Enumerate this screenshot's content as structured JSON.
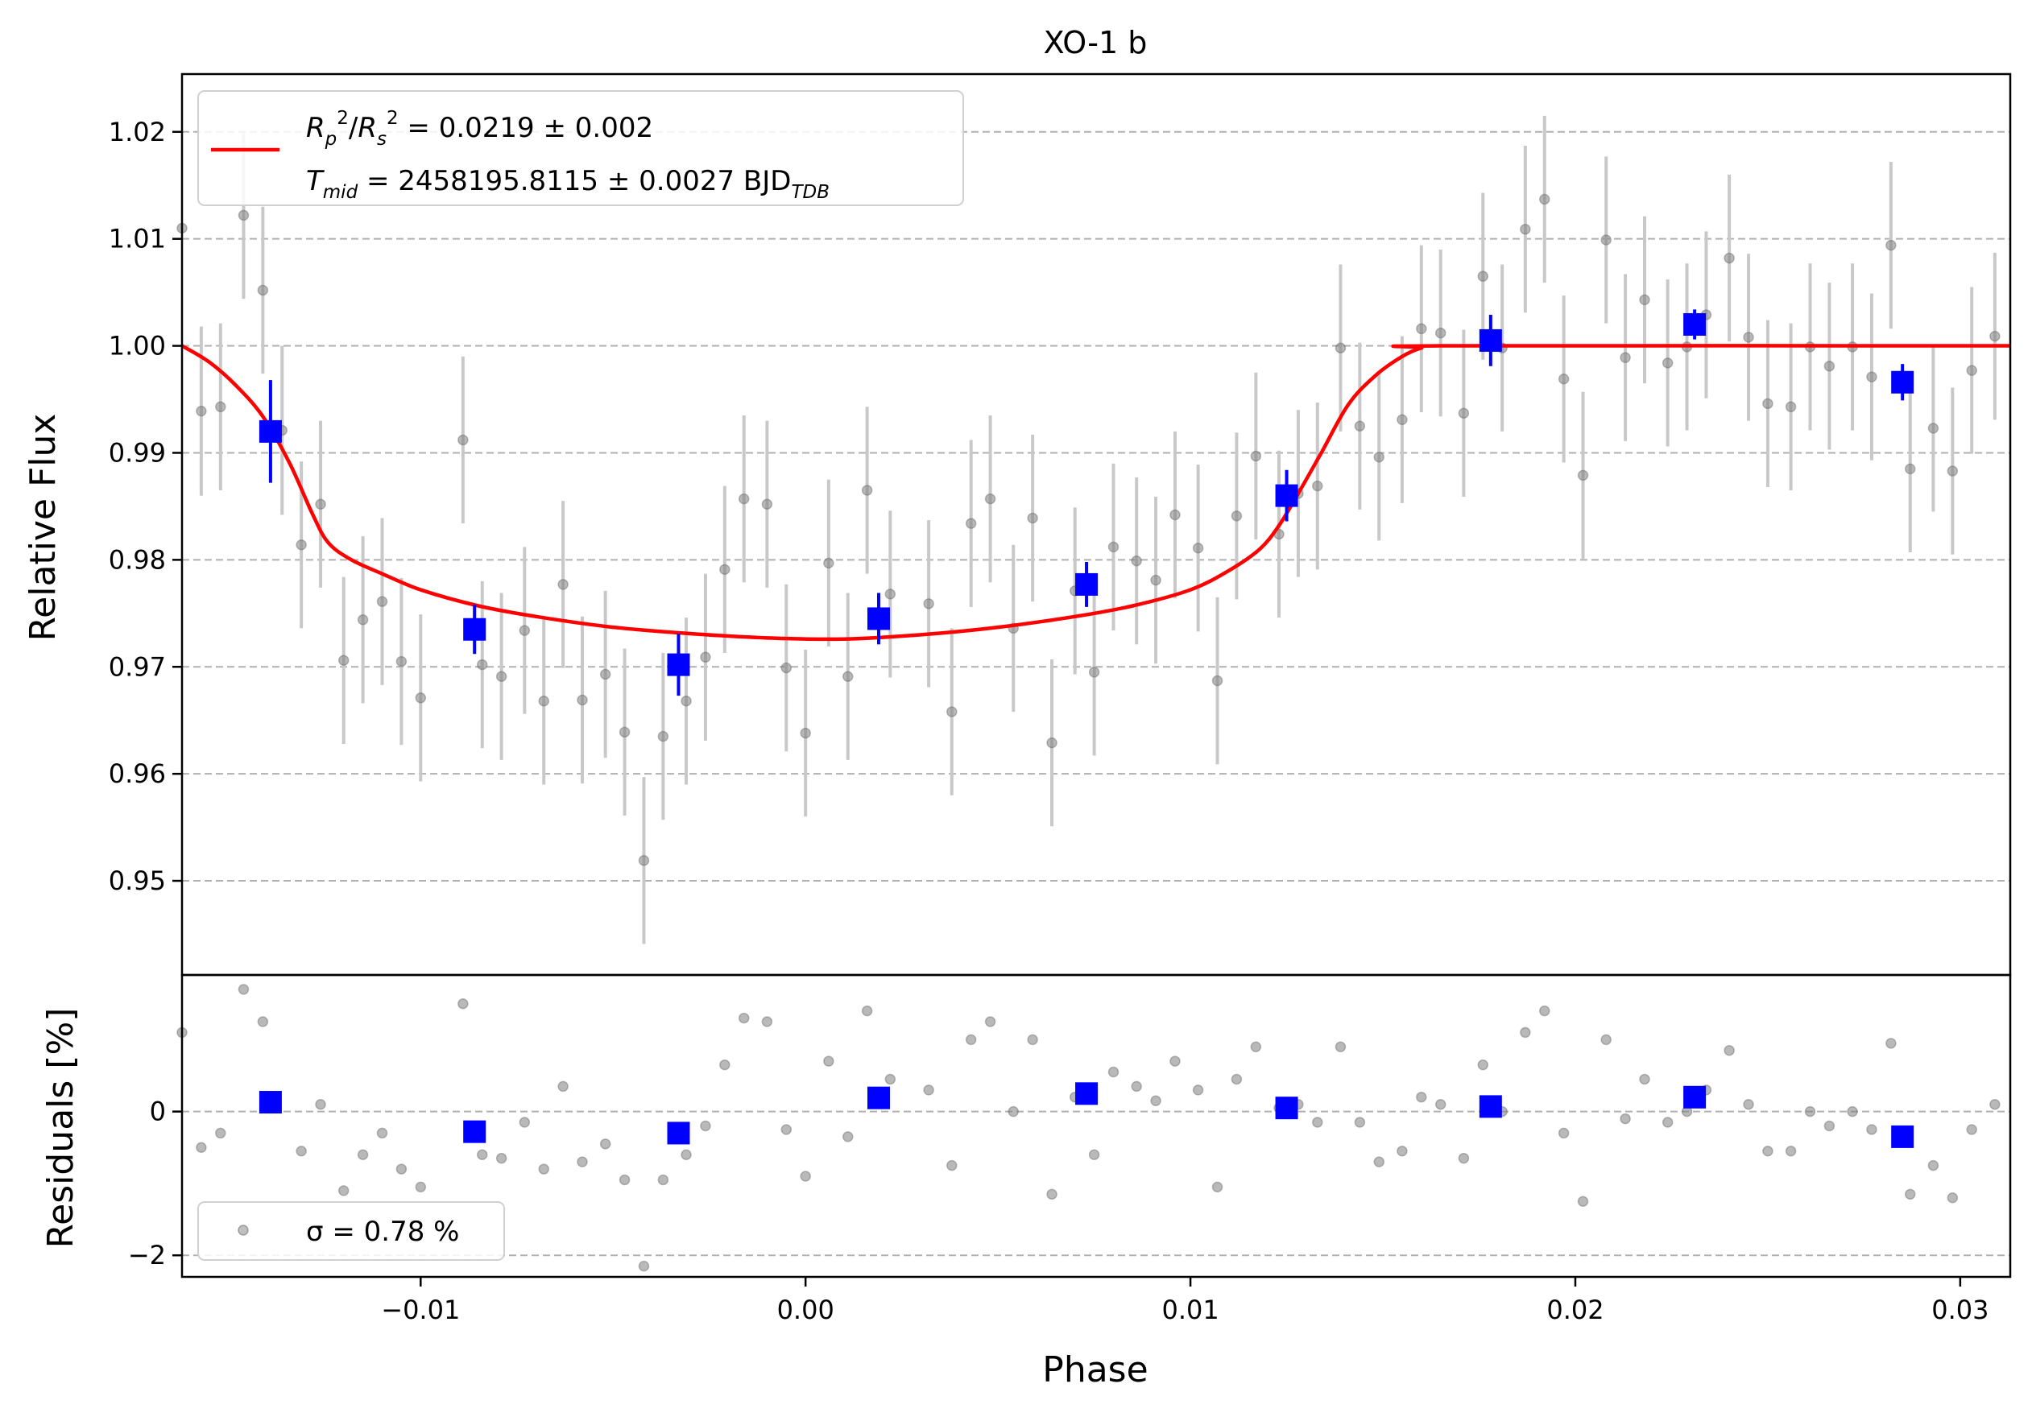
{
  "chart_data": [
    {
      "type": "scatter",
      "title": "XO-1 b",
      "xlabel": "",
      "ylabel": "Relative Flux",
      "xlim": [
        -0.0162,
        0.0313
      ],
      "ylim": [
        0.9412,
        1.0254
      ],
      "grid": "y-dashed",
      "legend_position": "top-left",
      "yticks": [
        "0.95",
        "0.96",
        "0.97",
        "0.98",
        "0.99",
        "1.00",
        "1.01",
        "1.02"
      ],
      "legend": {
        "line1_html": "<tspan font-style='italic'>R</tspan><tspan font-size='23' dy='10' font-style='italic'>p</tspan><tspan font-size='23' dy='-26'>2</tspan><tspan dy='16'>/</tspan><tspan font-style='italic'>R</tspan><tspan font-size='23' dy='10' font-style='italic'>s</tspan><tspan font-size='23' dy='-26'>2</tspan><tspan dy='16'> = 0.0219 ± 0.002</tspan>",
        "line2_html": "<tspan font-style='italic'>T</tspan><tspan font-size='23' dy='10' font-style='italic'>mid</tspan><tspan dy='-10'> = 2458195.8115 ± 0.0027 BJD</tspan><tspan font-size='23' dy='10' font-style='italic'>TDB</tspan>"
      },
      "colors": {
        "model": "#ff0000",
        "binned": "#0000ff",
        "raw": "#808080",
        "errorbar": "#c8c8c8",
        "grid": "#b0b0b0"
      },
      "raw_points": [
        [
          -0.0162,
          1.011,
          0.0
        ],
        [
          -0.0157,
          0.9939,
          0.0079
        ],
        [
          -0.0152,
          0.9943,
          0.0078
        ],
        [
          -0.0146,
          1.0122,
          0.0078
        ],
        [
          -0.0141,
          1.0052,
          0.0078
        ],
        [
          -0.0136,
          0.9921,
          0.0079
        ],
        [
          -0.0131,
          0.9814,
          0.0078
        ],
        [
          -0.0126,
          0.9852,
          0.0078
        ],
        [
          -0.012,
          0.9706,
          0.0078
        ],
        [
          -0.0115,
          0.9744,
          0.0078
        ],
        [
          -0.011,
          0.9761,
          0.0078
        ],
        [
          -0.0105,
          0.9705,
          0.0078
        ],
        [
          -0.01,
          0.9671,
          0.0078
        ],
        [
          -0.0089,
          0.9912,
          0.0078
        ],
        [
          -0.0084,
          0.9702,
          0.0078
        ],
        [
          -0.0079,
          0.9691,
          0.0078
        ],
        [
          -0.0073,
          0.9734,
          0.0078
        ],
        [
          -0.0068,
          0.9668,
          0.0078
        ],
        [
          -0.0063,
          0.9777,
          0.0078
        ],
        [
          -0.0058,
          0.9669,
          0.0078
        ],
        [
          -0.0052,
          0.9693,
          0.0078
        ],
        [
          -0.0047,
          0.9639,
          0.0078
        ],
        [
          -0.0042,
          0.9519,
          0.0078
        ],
        [
          -0.0037,
          0.9635,
          0.0078
        ],
        [
          -0.0031,
          0.9668,
          0.0078
        ],
        [
          -0.0026,
          0.9709,
          0.0078
        ],
        [
          -0.0021,
          0.9791,
          0.0078
        ],
        [
          -0.0016,
          0.9857,
          0.0078
        ],
        [
          -0.001,
          0.9852,
          0.0078
        ],
        [
          -0.0005,
          0.9699,
          0.0078
        ],
        [
          0.0,
          0.9638,
          0.0078
        ],
        [
          0.0006,
          0.9797,
          0.0078
        ],
        [
          0.0011,
          0.9691,
          0.0078
        ],
        [
          0.0016,
          0.9865,
          0.0078
        ],
        [
          0.0022,
          0.9768,
          0.0078
        ],
        [
          0.0032,
          0.9759,
          0.0078
        ],
        [
          0.0038,
          0.9658,
          0.0078
        ],
        [
          0.0043,
          0.9834,
          0.0078
        ],
        [
          0.0048,
          0.9857,
          0.0078
        ],
        [
          0.0054,
          0.9736,
          0.0078
        ],
        [
          0.0059,
          0.9839,
          0.0078
        ],
        [
          0.0064,
          0.9629,
          0.0078
        ],
        [
          0.007,
          0.9771,
          0.0078
        ],
        [
          0.0075,
          0.9695,
          0.0078
        ],
        [
          0.008,
          0.9812,
          0.0078
        ],
        [
          0.0086,
          0.9799,
          0.0078
        ],
        [
          0.0091,
          0.9781,
          0.0078
        ],
        [
          0.0096,
          0.9842,
          0.0078
        ],
        [
          0.0102,
          0.9811,
          0.0078
        ],
        [
          0.0107,
          0.9687,
          0.0078
        ],
        [
          0.0112,
          0.9841,
          0.0078
        ],
        [
          0.0117,
          0.9897,
          0.0078
        ],
        [
          0.0123,
          0.9824,
          0.0078
        ],
        [
          0.0128,
          0.9862,
          0.0078
        ],
        [
          0.0133,
          0.9869,
          0.0078
        ],
        [
          0.0139,
          0.9998,
          0.0078
        ],
        [
          0.0144,
          0.9925,
          0.0078
        ],
        [
          0.0149,
          0.9896,
          0.0078
        ],
        [
          0.0155,
          0.9931,
          0.0078
        ],
        [
          0.016,
          1.0016,
          0.0078
        ],
        [
          0.0165,
          1.0012,
          0.0078
        ],
        [
          0.0171,
          0.9937,
          0.0078
        ],
        [
          0.0176,
          1.0065,
          0.0078
        ],
        [
          0.0181,
          0.9998,
          0.0078
        ],
        [
          0.0187,
          1.0109,
          0.0078
        ],
        [
          0.0192,
          1.0137,
          0.0078
        ],
        [
          0.0197,
          0.9969,
          0.0078
        ],
        [
          0.0202,
          0.9879,
          0.0078
        ],
        [
          0.0208,
          1.0099,
          0.0078
        ],
        [
          0.0213,
          0.9989,
          0.0078
        ],
        [
          0.0218,
          1.0043,
          0.0078
        ],
        [
          0.0224,
          0.9984,
          0.0078
        ],
        [
          0.0229,
          0.9999,
          0.0078
        ],
        [
          0.0234,
          1.0029,
          0.0078
        ],
        [
          0.024,
          1.0082,
          0.0078
        ],
        [
          0.0245,
          1.0008,
          0.0078
        ],
        [
          0.025,
          0.9946,
          0.0078
        ],
        [
          0.0256,
          0.9943,
          0.0078
        ],
        [
          0.0261,
          0.9999,
          0.0078
        ],
        [
          0.0266,
          0.9981,
          0.0078
        ],
        [
          0.0272,
          0.9999,
          0.0078
        ],
        [
          0.0277,
          0.9971,
          0.0078
        ],
        [
          0.0282,
          1.0094,
          0.0078
        ],
        [
          0.0287,
          0.9885,
          0.0078
        ],
        [
          0.0293,
          0.9923,
          0.0078
        ],
        [
          0.0298,
          0.9883,
          0.0078
        ],
        [
          0.0303,
          0.9977,
          0.0078
        ],
        [
          0.0309,
          1.0009,
          0.0078
        ]
      ],
      "binned_points": [
        [
          -0.0139,
          0.992,
          0.0048
        ],
        [
          -0.0086,
          0.9735,
          0.0023
        ],
        [
          -0.0033,
          0.9702,
          0.0029
        ],
        [
          0.0019,
          0.9745,
          0.0024
        ],
        [
          0.0073,
          0.9777,
          0.0021
        ],
        [
          0.0125,
          0.986,
          0.0024
        ],
        [
          0.0178,
          1.0005,
          0.0024
        ],
        [
          0.0231,
          1.002,
          0.0014
        ],
        [
          0.0285,
          0.9966,
          0.0017
        ]
      ],
      "model_knots": [
        [
          -0.0162,
          1.0
        ],
        [
          -0.0155,
          0.9985
        ],
        [
          -0.0148,
          0.9963
        ],
        [
          -0.0141,
          0.9934
        ],
        [
          -0.0134,
          0.989
        ],
        [
          -0.0128,
          0.9842
        ],
        [
          -0.0124,
          0.9816
        ],
        [
          -0.0118,
          0.98
        ],
        [
          -0.011,
          0.9787
        ],
        [
          -0.01,
          0.9772
        ],
        [
          -0.0085,
          0.9757
        ],
        [
          -0.007,
          0.9747
        ],
        [
          -0.005,
          0.9737
        ],
        [
          -0.003,
          0.9731
        ],
        [
          -0.001,
          0.9727
        ],
        [
          0.001,
          0.9726
        ],
        [
          0.003,
          0.973
        ],
        [
          0.005,
          0.9737
        ],
        [
          0.007,
          0.9747
        ],
        [
          0.0085,
          0.9757
        ],
        [
          0.01,
          0.9772
        ],
        [
          0.011,
          0.979
        ],
        [
          0.0118,
          0.981
        ],
        [
          0.0123,
          0.9832
        ],
        [
          0.0128,
          0.9862
        ],
        [
          0.0134,
          0.99
        ],
        [
          0.0141,
          0.9945
        ],
        [
          0.0148,
          0.9972
        ],
        [
          0.0155,
          0.999
        ],
        [
          0.016,
          0.9998
        ],
        [
          0.0165,
          1.0
        ],
        [
          0.0313,
          1.0
        ]
      ]
    },
    {
      "type": "scatter",
      "xlabel": "Phase",
      "ylabel": "Residuals [%]",
      "xlim": [
        -0.0162,
        0.0313
      ],
      "ylim": [
        -2.3,
        1.9
      ],
      "grid": "y-dashed",
      "legend_position": "bottom-left",
      "legend_text": "σ = 0.78 %",
      "yticks": [
        {
          "value": -2,
          "label": "−2"
        },
        {
          "value": 0,
          "label": "0"
        }
      ],
      "xticks": [
        {
          "value": -0.01,
          "label": "−0.01"
        },
        {
          "value": 0.0,
          "label": "0.00"
        },
        {
          "value": 0.01,
          "label": "0.01"
        },
        {
          "value": 0.02,
          "label": "0.02"
        },
        {
          "value": 0.03,
          "label": "0.03"
        }
      ],
      "raw_points": [
        [
          -0.0162,
          1.1
        ],
        [
          -0.0157,
          -0.5
        ],
        [
          -0.0152,
          -0.3
        ],
        [
          -0.0146,
          1.7
        ],
        [
          -0.0141,
          1.25
        ],
        [
          -0.0131,
          -0.55
        ],
        [
          -0.0126,
          0.1
        ],
        [
          -0.012,
          -1.1
        ],
        [
          -0.0115,
          -0.6
        ],
        [
          -0.011,
          -0.3
        ],
        [
          -0.0105,
          -0.8
        ],
        [
          -0.01,
          -1.05
        ],
        [
          -0.0089,
          1.5
        ],
        [
          -0.0084,
          -0.6
        ],
        [
          -0.0079,
          -0.65
        ],
        [
          -0.0073,
          -0.15
        ],
        [
          -0.0068,
          -0.8
        ],
        [
          -0.0063,
          0.35
        ],
        [
          -0.0058,
          -0.7
        ],
        [
          -0.0052,
          -0.45
        ],
        [
          -0.0047,
          -0.95
        ],
        [
          -0.0042,
          -2.15
        ],
        [
          -0.0037,
          -0.95
        ],
        [
          -0.0031,
          -0.6
        ],
        [
          -0.0026,
          -0.2
        ],
        [
          -0.0021,
          0.65
        ],
        [
          -0.0016,
          1.3
        ],
        [
          -0.001,
          1.25
        ],
        [
          -0.0005,
          -0.25
        ],
        [
          0.0,
          -0.9
        ],
        [
          0.0006,
          0.7
        ],
        [
          0.0011,
          -0.35
        ],
        [
          0.0016,
          1.4
        ],
        [
          0.0022,
          0.45
        ],
        [
          0.0032,
          0.3
        ],
        [
          0.0038,
          -0.75
        ],
        [
          0.0043,
          1.0
        ],
        [
          0.0048,
          1.25
        ],
        [
          0.0054,
          0.0
        ],
        [
          0.0059,
          1.0
        ],
        [
          0.0064,
          -1.15
        ],
        [
          0.007,
          0.2
        ],
        [
          0.0075,
          -0.6
        ],
        [
          0.008,
          0.55
        ],
        [
          0.0086,
          0.35
        ],
        [
          0.0091,
          0.15
        ],
        [
          0.0096,
          0.7
        ],
        [
          0.0102,
          0.3
        ],
        [
          0.0107,
          -1.05
        ],
        [
          0.0112,
          0.45
        ],
        [
          0.0117,
          0.9
        ],
        [
          0.0123,
          0.05
        ],
        [
          0.0128,
          0.1
        ],
        [
          0.0133,
          -0.15
        ],
        [
          0.0139,
          0.9
        ],
        [
          0.0144,
          -0.15
        ],
        [
          0.0149,
          -0.7
        ],
        [
          0.0155,
          -0.55
        ],
        [
          0.016,
          0.2
        ],
        [
          0.0165,
          0.1
        ],
        [
          0.0171,
          -0.65
        ],
        [
          0.0176,
          0.65
        ],
        [
          0.0181,
          0.0
        ],
        [
          0.0187,
          1.1
        ],
        [
          0.0192,
          1.4
        ],
        [
          0.0197,
          -0.3
        ],
        [
          0.0202,
          -1.25
        ],
        [
          0.0208,
          1.0
        ],
        [
          0.0213,
          -0.1
        ],
        [
          0.0218,
          0.45
        ],
        [
          0.0224,
          -0.15
        ],
        [
          0.0229,
          0.0
        ],
        [
          0.0234,
          0.3
        ],
        [
          0.024,
          0.85
        ],
        [
          0.0245,
          0.1
        ],
        [
          0.025,
          -0.55
        ],
        [
          0.0256,
          -0.55
        ],
        [
          0.0261,
          0.0
        ],
        [
          0.0266,
          -0.2
        ],
        [
          0.0272,
          0.0
        ],
        [
          0.0277,
          -0.25
        ],
        [
          0.0282,
          0.95
        ],
        [
          0.0287,
          -1.15
        ],
        [
          0.0293,
          -0.75
        ],
        [
          0.0298,
          -1.2
        ],
        [
          0.0303,
          -0.25
        ],
        [
          0.0309,
          0.1
        ]
      ],
      "binned_points": [
        [
          -0.0139,
          0.13
        ],
        [
          -0.0086,
          -0.28
        ],
        [
          -0.0033,
          -0.3
        ],
        [
          0.0019,
          0.19
        ],
        [
          0.0073,
          0.25
        ],
        [
          0.0125,
          0.05
        ],
        [
          0.0178,
          0.07
        ],
        [
          0.0231,
          0.2
        ],
        [
          0.0285,
          -0.35
        ]
      ]
    }
  ]
}
